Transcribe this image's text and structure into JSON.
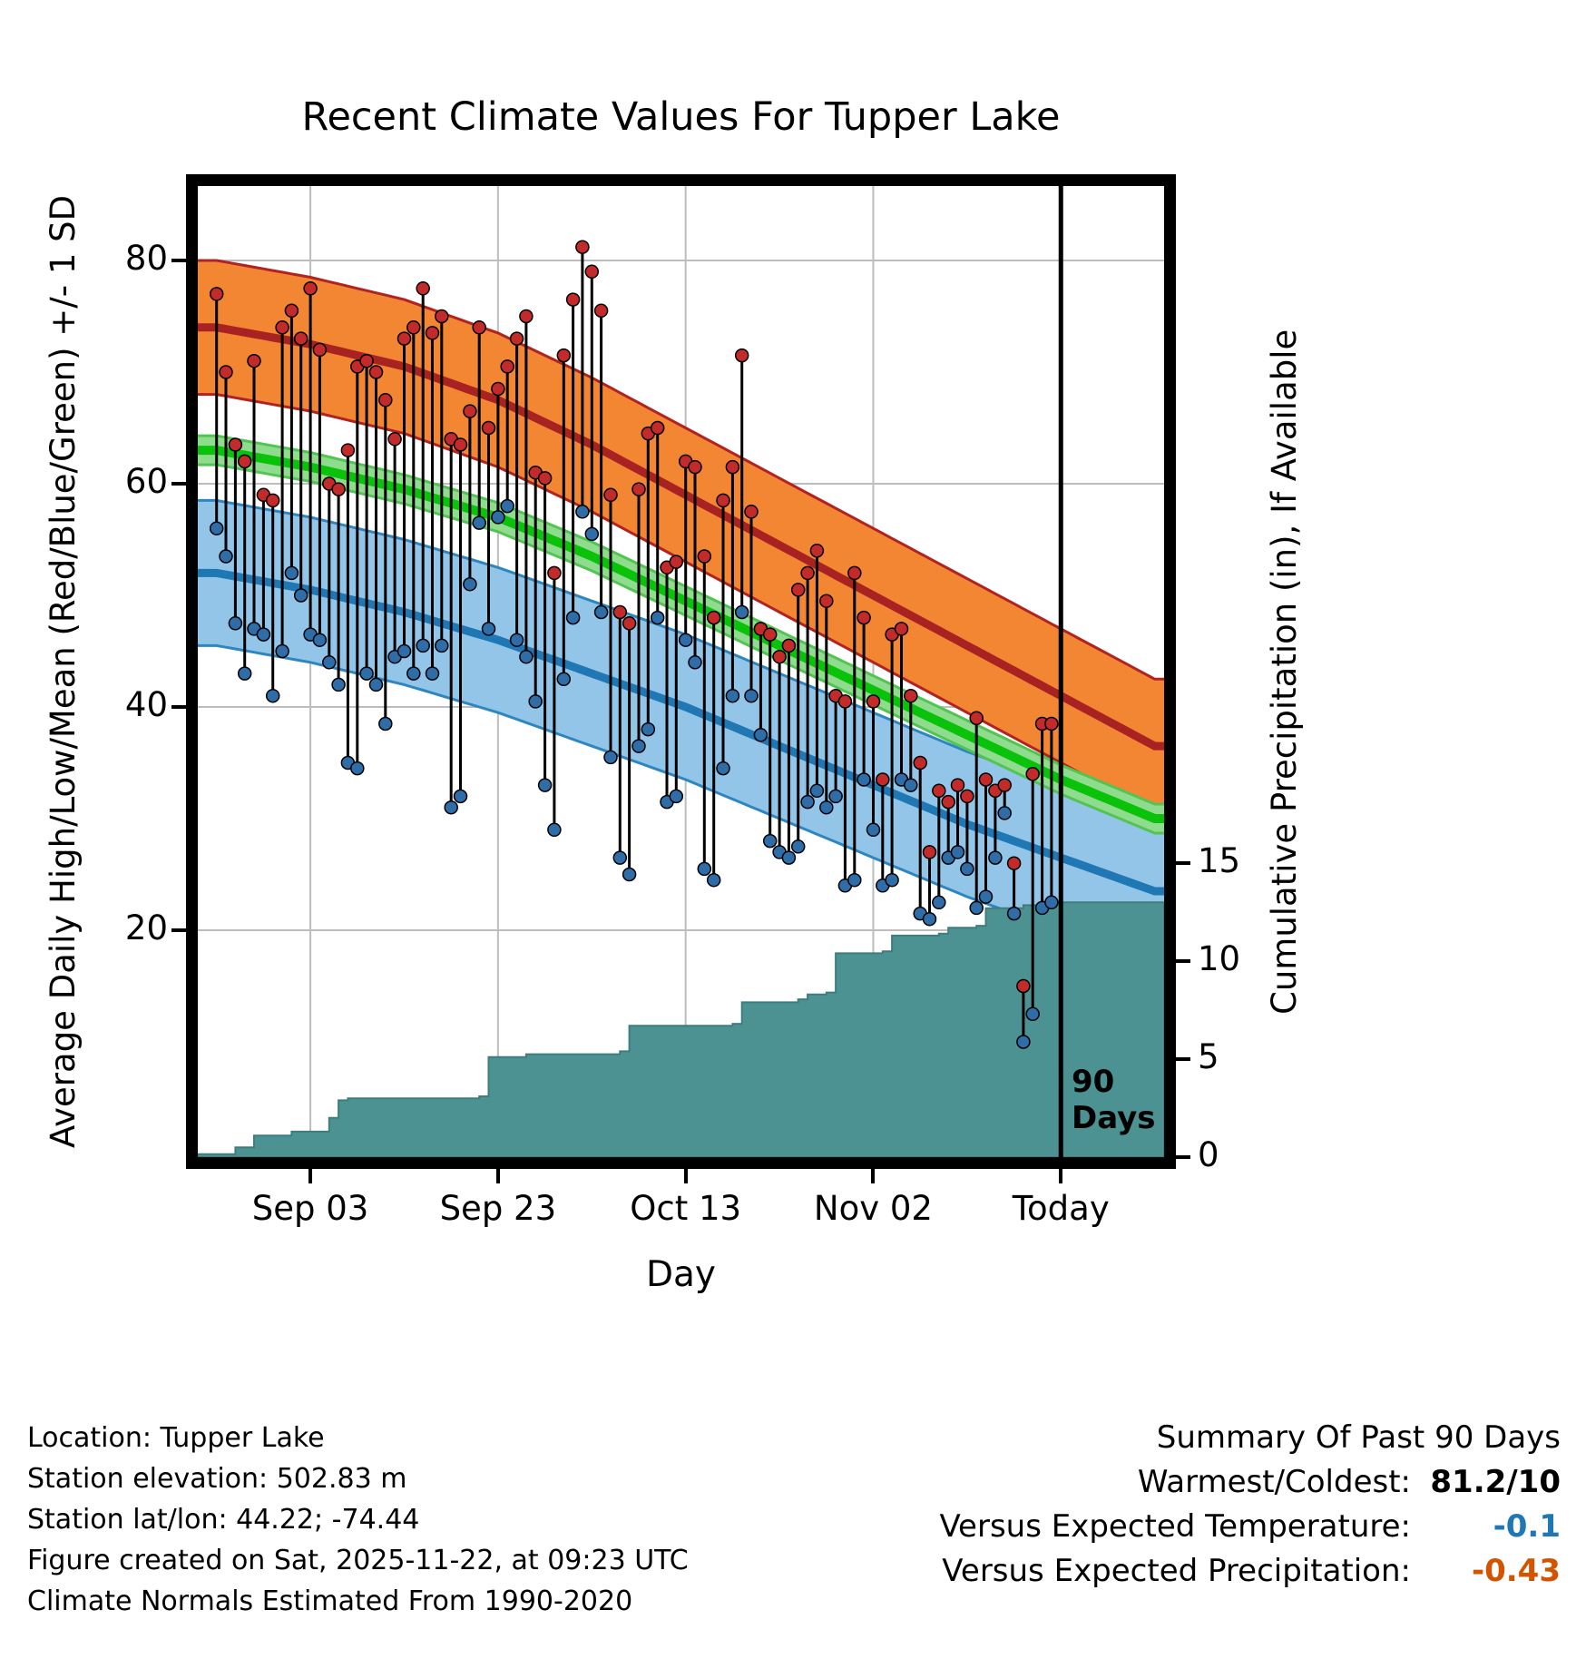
{
  "title": "Recent Climate Values For Tupper Lake",
  "axes": {
    "left_label": "Average Daily High/Low/Mean (Red/Blue/Green) +/- 1 SD",
    "right_label": "Cumulative Precipitation (in), If Available",
    "x_label": "Day",
    "left_ticks": [
      80,
      60,
      40,
      20
    ],
    "right_ticks": [
      15,
      10,
      5,
      0
    ],
    "x_ticks": [
      {
        "label": "Sep 03",
        "day": 10
      },
      {
        "label": "Sep 23",
        "day": 30
      },
      {
        "label": "Oct 13",
        "day": 50
      },
      {
        "label": "Nov 02",
        "day": 70
      },
      {
        "label": "Today",
        "day": 90
      }
    ]
  },
  "annotation": {
    "line1": "90",
    "line2": "Days",
    "at_day": 90
  },
  "footer_left": [
    "Location: Tupper Lake",
    "Station elevation: 502.83 m",
    "Station lat/lon: 44.22; -74.44",
    "Figure created on Sat, 2025-11-22, at 09:23 UTC",
    "Climate Normals Estimated From 1990-2020"
  ],
  "summary": {
    "title": "Summary Of Past 90 Days",
    "rows": [
      {
        "label": "Warmest/Coldest:",
        "value": "81.2/10",
        "color": "#000000"
      },
      {
        "label": "Versus Expected Temperature:",
        "value": "-0.1",
        "color": "#1f77b4"
      },
      {
        "label": "Versus Expected Precipitation:",
        "value": "-0.43",
        "color": "#d35400"
      }
    ]
  },
  "colors": {
    "grid": "#bdbdbd",
    "high_band_fill": "#f28633",
    "high_band_edge": "#b22222",
    "high_mean_line": "#a82222",
    "low_band_fill": "#92c5e8",
    "low_band_edge": "#2e86c1",
    "low_mean_line": "#1f77b4",
    "mean_band_fill": "#8fdc8f",
    "mean_band_edge": "#52c452",
    "mean_line": "#0bc20b",
    "precip_fill": "#4d9293",
    "precip_edge": "#3e7d7d",
    "high_dot": "#c32a2a",
    "low_dot": "#2e6da8",
    "stem": "#000000",
    "today_line": "#000000"
  },
  "chart_data": {
    "type": "line",
    "title": "Recent Climate Values For Tupper Lake",
    "xlabel": "Day",
    "ylabel_left": "Average Daily High/Low/Mean (Red/Blue/Green) +/- 1 SD",
    "ylabel_right": "Cumulative Precipitation (in), If Available",
    "x_day_range_shown": [
      -2,
      101
    ],
    "left_ylim": [
      -0.3,
      86.7
    ],
    "right_ylim": [
      0,
      49.5
    ],
    "grid": true,
    "today_day": 90,
    "x_ticks": [
      {
        "label": "Sep 03",
        "day": 10
      },
      {
        "label": "Sep 23",
        "day": 30
      },
      {
        "label": "Oct 13",
        "day": 50
      },
      {
        "label": "Nov 02",
        "day": 70
      },
      {
        "label": "Today",
        "day": 90
      }
    ],
    "daily": {
      "note": "day 0 = 90 days before Today; one high/low pair per day",
      "highs": [
        77,
        70,
        63.5,
        62,
        71,
        59,
        58.5,
        74,
        75.5,
        73,
        77.5,
        72,
        60,
        59.5,
        63,
        70.5,
        71,
        70,
        67.5,
        64,
        73,
        74,
        77.5,
        73.5,
        75,
        64,
        63.5,
        66.5,
        74,
        65,
        68.5,
        70.5,
        73,
        75,
        61,
        60.5,
        52,
        71.5,
        76.5,
        81.2,
        79,
        75.5,
        59,
        48.5,
        47.5,
        59.5,
        64.5,
        65,
        52.5,
        53,
        62,
        61.5,
        53.5,
        48,
        58.5,
        61.5,
        71.5,
        57.5,
        47,
        46.5,
        44.5,
        45.5,
        50.5,
        52,
        54,
        49.5,
        41,
        40.5,
        52,
        48,
        40.5,
        33.5,
        46.5,
        47,
        41,
        35,
        27,
        32.5,
        31.5,
        33,
        32,
        39,
        33.5,
        32.5,
        33,
        26,
        15,
        34,
        38.5,
        38.5
      ],
      "lows": [
        56,
        53.5,
        47.5,
        43,
        47,
        46.5,
        41,
        45,
        52,
        50,
        46.5,
        46,
        44,
        42,
        35,
        34.5,
        43,
        42,
        38.5,
        44.5,
        45,
        43,
        45.5,
        43,
        45.5,
        31,
        32,
        51,
        56.5,
        47,
        57,
        58,
        46,
        44.5,
        40.5,
        33,
        29,
        42.5,
        48,
        57.5,
        55.5,
        48.5,
        35.5,
        26.5,
        25,
        36.5,
        38,
        48,
        31.5,
        32,
        46,
        44,
        25.5,
        24.5,
        34.5,
        41,
        48.5,
        41,
        37.5,
        28,
        27,
        26.5,
        27.5,
        31.5,
        32.5,
        31,
        32,
        24,
        24.5,
        33.5,
        29,
        24,
        24.5,
        33.5,
        33,
        21.5,
        21,
        22.5,
        26.5,
        27,
        25.5,
        22,
        23,
        26.5,
        30.5,
        21.5,
        10,
        12.5,
        22,
        22.5
      ]
    },
    "normals": {
      "sample_days": [
        0,
        10,
        20,
        30,
        40,
        50,
        60,
        70,
        80,
        90,
        100
      ],
      "high_mean": [
        74,
        72.5,
        70.5,
        67.5,
        63.5,
        59,
        54.5,
        50,
        45.5,
        41,
        36.5
      ],
      "high_sd": 6,
      "mean": [
        63,
        61.5,
        59.5,
        57,
        53.5,
        49.5,
        45.5,
        41.5,
        37.5,
        33.5,
        30
      ],
      "mean_sd": 1.3,
      "low_mean": [
        52,
        50.5,
        48.5,
        46,
        43,
        40,
        36.5,
        33,
        29.5,
        26.5,
        23.5
      ],
      "low_sd": 6.5
    },
    "cumulative_precip_in": {
      "breakpoints": [
        [
          -2,
          0.15
        ],
        [
          2,
          0.5
        ],
        [
          4,
          1.1
        ],
        [
          8,
          1.3
        ],
        [
          12,
          2.0
        ],
        [
          13,
          2.9
        ],
        [
          14,
          3.0
        ],
        [
          28,
          3.1
        ],
        [
          29,
          5.1
        ],
        [
          33,
          5.25
        ],
        [
          43,
          5.4
        ],
        [
          44,
          6.7
        ],
        [
          55,
          6.8
        ],
        [
          56,
          7.9
        ],
        [
          62,
          8.05
        ],
        [
          63,
          8.3
        ],
        [
          65,
          8.4
        ],
        [
          66,
          10.4
        ],
        [
          71,
          10.5
        ],
        [
          72,
          11.3
        ],
        [
          77,
          11.4
        ],
        [
          78,
          11.7
        ],
        [
          81,
          11.8
        ],
        [
          82,
          12.7
        ],
        [
          86,
          12.85
        ],
        [
          88,
          13.0
        ],
        [
          101,
          13.0
        ]
      ],
      "total_at_today": 13.0
    },
    "summary_of_past_90_days": {
      "warmest": 81.2,
      "coldest": 10,
      "versus_expected_temperature": -0.1,
      "versus_expected_precipitation": -0.43
    }
  }
}
